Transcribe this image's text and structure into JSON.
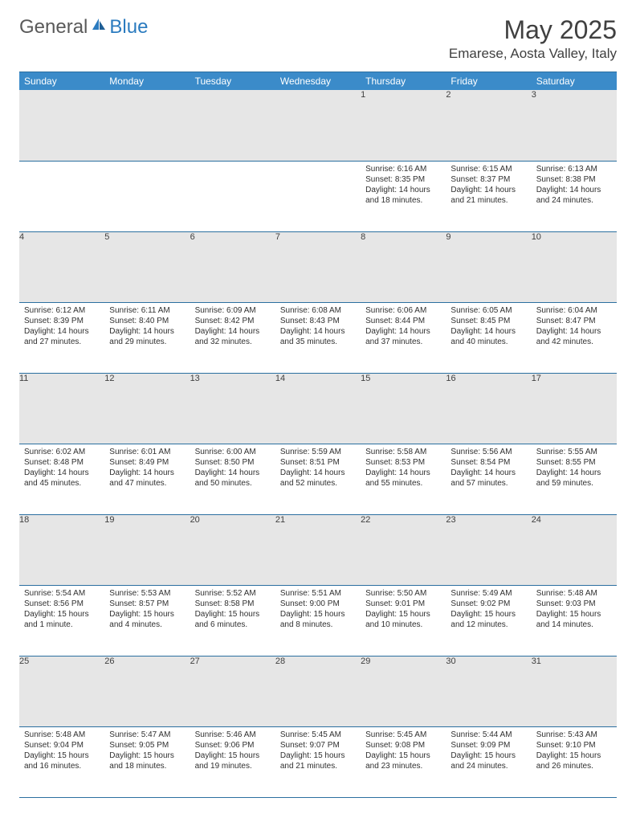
{
  "brand": {
    "part1": "General",
    "part2": "Blue"
  },
  "title": "May 2025",
  "location": "Emarese, Aosta Valley, Italy",
  "colors": {
    "header_bg": "#3b8bc9",
    "header_text": "#ffffff",
    "daynum_bg": "#e6e6e6",
    "border": "#2b6fa0",
    "text": "#303030",
    "logo_gray": "#5a5a5a",
    "logo_blue": "#2b7bbf"
  },
  "weekdays": [
    "Sunday",
    "Monday",
    "Tuesday",
    "Wednesday",
    "Thursday",
    "Friday",
    "Saturday"
  ],
  "weeks": [
    [
      {
        "day": "",
        "sunrise": "",
        "sunset": "",
        "daylight1": "",
        "daylight2": ""
      },
      {
        "day": "",
        "sunrise": "",
        "sunset": "",
        "daylight1": "",
        "daylight2": ""
      },
      {
        "day": "",
        "sunrise": "",
        "sunset": "",
        "daylight1": "",
        "daylight2": ""
      },
      {
        "day": "",
        "sunrise": "",
        "sunset": "",
        "daylight1": "",
        "daylight2": ""
      },
      {
        "day": "1",
        "sunrise": "Sunrise: 6:16 AM",
        "sunset": "Sunset: 8:35 PM",
        "daylight1": "Daylight: 14 hours",
        "daylight2": "and 18 minutes."
      },
      {
        "day": "2",
        "sunrise": "Sunrise: 6:15 AM",
        "sunset": "Sunset: 8:37 PM",
        "daylight1": "Daylight: 14 hours",
        "daylight2": "and 21 minutes."
      },
      {
        "day": "3",
        "sunrise": "Sunrise: 6:13 AM",
        "sunset": "Sunset: 8:38 PM",
        "daylight1": "Daylight: 14 hours",
        "daylight2": "and 24 minutes."
      }
    ],
    [
      {
        "day": "4",
        "sunrise": "Sunrise: 6:12 AM",
        "sunset": "Sunset: 8:39 PM",
        "daylight1": "Daylight: 14 hours",
        "daylight2": "and 27 minutes."
      },
      {
        "day": "5",
        "sunrise": "Sunrise: 6:11 AM",
        "sunset": "Sunset: 8:40 PM",
        "daylight1": "Daylight: 14 hours",
        "daylight2": "and 29 minutes."
      },
      {
        "day": "6",
        "sunrise": "Sunrise: 6:09 AM",
        "sunset": "Sunset: 8:42 PM",
        "daylight1": "Daylight: 14 hours",
        "daylight2": "and 32 minutes."
      },
      {
        "day": "7",
        "sunrise": "Sunrise: 6:08 AM",
        "sunset": "Sunset: 8:43 PM",
        "daylight1": "Daylight: 14 hours",
        "daylight2": "and 35 minutes."
      },
      {
        "day": "8",
        "sunrise": "Sunrise: 6:06 AM",
        "sunset": "Sunset: 8:44 PM",
        "daylight1": "Daylight: 14 hours",
        "daylight2": "and 37 minutes."
      },
      {
        "day": "9",
        "sunrise": "Sunrise: 6:05 AM",
        "sunset": "Sunset: 8:45 PM",
        "daylight1": "Daylight: 14 hours",
        "daylight2": "and 40 minutes."
      },
      {
        "day": "10",
        "sunrise": "Sunrise: 6:04 AM",
        "sunset": "Sunset: 8:47 PM",
        "daylight1": "Daylight: 14 hours",
        "daylight2": "and 42 minutes."
      }
    ],
    [
      {
        "day": "11",
        "sunrise": "Sunrise: 6:02 AM",
        "sunset": "Sunset: 8:48 PM",
        "daylight1": "Daylight: 14 hours",
        "daylight2": "and 45 minutes."
      },
      {
        "day": "12",
        "sunrise": "Sunrise: 6:01 AM",
        "sunset": "Sunset: 8:49 PM",
        "daylight1": "Daylight: 14 hours",
        "daylight2": "and 47 minutes."
      },
      {
        "day": "13",
        "sunrise": "Sunrise: 6:00 AM",
        "sunset": "Sunset: 8:50 PM",
        "daylight1": "Daylight: 14 hours",
        "daylight2": "and 50 minutes."
      },
      {
        "day": "14",
        "sunrise": "Sunrise: 5:59 AM",
        "sunset": "Sunset: 8:51 PM",
        "daylight1": "Daylight: 14 hours",
        "daylight2": "and 52 minutes."
      },
      {
        "day": "15",
        "sunrise": "Sunrise: 5:58 AM",
        "sunset": "Sunset: 8:53 PM",
        "daylight1": "Daylight: 14 hours",
        "daylight2": "and 55 minutes."
      },
      {
        "day": "16",
        "sunrise": "Sunrise: 5:56 AM",
        "sunset": "Sunset: 8:54 PM",
        "daylight1": "Daylight: 14 hours",
        "daylight2": "and 57 minutes."
      },
      {
        "day": "17",
        "sunrise": "Sunrise: 5:55 AM",
        "sunset": "Sunset: 8:55 PM",
        "daylight1": "Daylight: 14 hours",
        "daylight2": "and 59 minutes."
      }
    ],
    [
      {
        "day": "18",
        "sunrise": "Sunrise: 5:54 AM",
        "sunset": "Sunset: 8:56 PM",
        "daylight1": "Daylight: 15 hours",
        "daylight2": "and 1 minute."
      },
      {
        "day": "19",
        "sunrise": "Sunrise: 5:53 AM",
        "sunset": "Sunset: 8:57 PM",
        "daylight1": "Daylight: 15 hours",
        "daylight2": "and 4 minutes."
      },
      {
        "day": "20",
        "sunrise": "Sunrise: 5:52 AM",
        "sunset": "Sunset: 8:58 PM",
        "daylight1": "Daylight: 15 hours",
        "daylight2": "and 6 minutes."
      },
      {
        "day": "21",
        "sunrise": "Sunrise: 5:51 AM",
        "sunset": "Sunset: 9:00 PM",
        "daylight1": "Daylight: 15 hours",
        "daylight2": "and 8 minutes."
      },
      {
        "day": "22",
        "sunrise": "Sunrise: 5:50 AM",
        "sunset": "Sunset: 9:01 PM",
        "daylight1": "Daylight: 15 hours",
        "daylight2": "and 10 minutes."
      },
      {
        "day": "23",
        "sunrise": "Sunrise: 5:49 AM",
        "sunset": "Sunset: 9:02 PM",
        "daylight1": "Daylight: 15 hours",
        "daylight2": "and 12 minutes."
      },
      {
        "day": "24",
        "sunrise": "Sunrise: 5:48 AM",
        "sunset": "Sunset: 9:03 PM",
        "daylight1": "Daylight: 15 hours",
        "daylight2": "and 14 minutes."
      }
    ],
    [
      {
        "day": "25",
        "sunrise": "Sunrise: 5:48 AM",
        "sunset": "Sunset: 9:04 PM",
        "daylight1": "Daylight: 15 hours",
        "daylight2": "and 16 minutes."
      },
      {
        "day": "26",
        "sunrise": "Sunrise: 5:47 AM",
        "sunset": "Sunset: 9:05 PM",
        "daylight1": "Daylight: 15 hours",
        "daylight2": "and 18 minutes."
      },
      {
        "day": "27",
        "sunrise": "Sunrise: 5:46 AM",
        "sunset": "Sunset: 9:06 PM",
        "daylight1": "Daylight: 15 hours",
        "daylight2": "and 19 minutes."
      },
      {
        "day": "28",
        "sunrise": "Sunrise: 5:45 AM",
        "sunset": "Sunset: 9:07 PM",
        "daylight1": "Daylight: 15 hours",
        "daylight2": "and 21 minutes."
      },
      {
        "day": "29",
        "sunrise": "Sunrise: 5:45 AM",
        "sunset": "Sunset: 9:08 PM",
        "daylight1": "Daylight: 15 hours",
        "daylight2": "and 23 minutes."
      },
      {
        "day": "30",
        "sunrise": "Sunrise: 5:44 AM",
        "sunset": "Sunset: 9:09 PM",
        "daylight1": "Daylight: 15 hours",
        "daylight2": "and 24 minutes."
      },
      {
        "day": "31",
        "sunrise": "Sunrise: 5:43 AM",
        "sunset": "Sunset: 9:10 PM",
        "daylight1": "Daylight: 15 hours",
        "daylight2": "and 26 minutes."
      }
    ]
  ]
}
